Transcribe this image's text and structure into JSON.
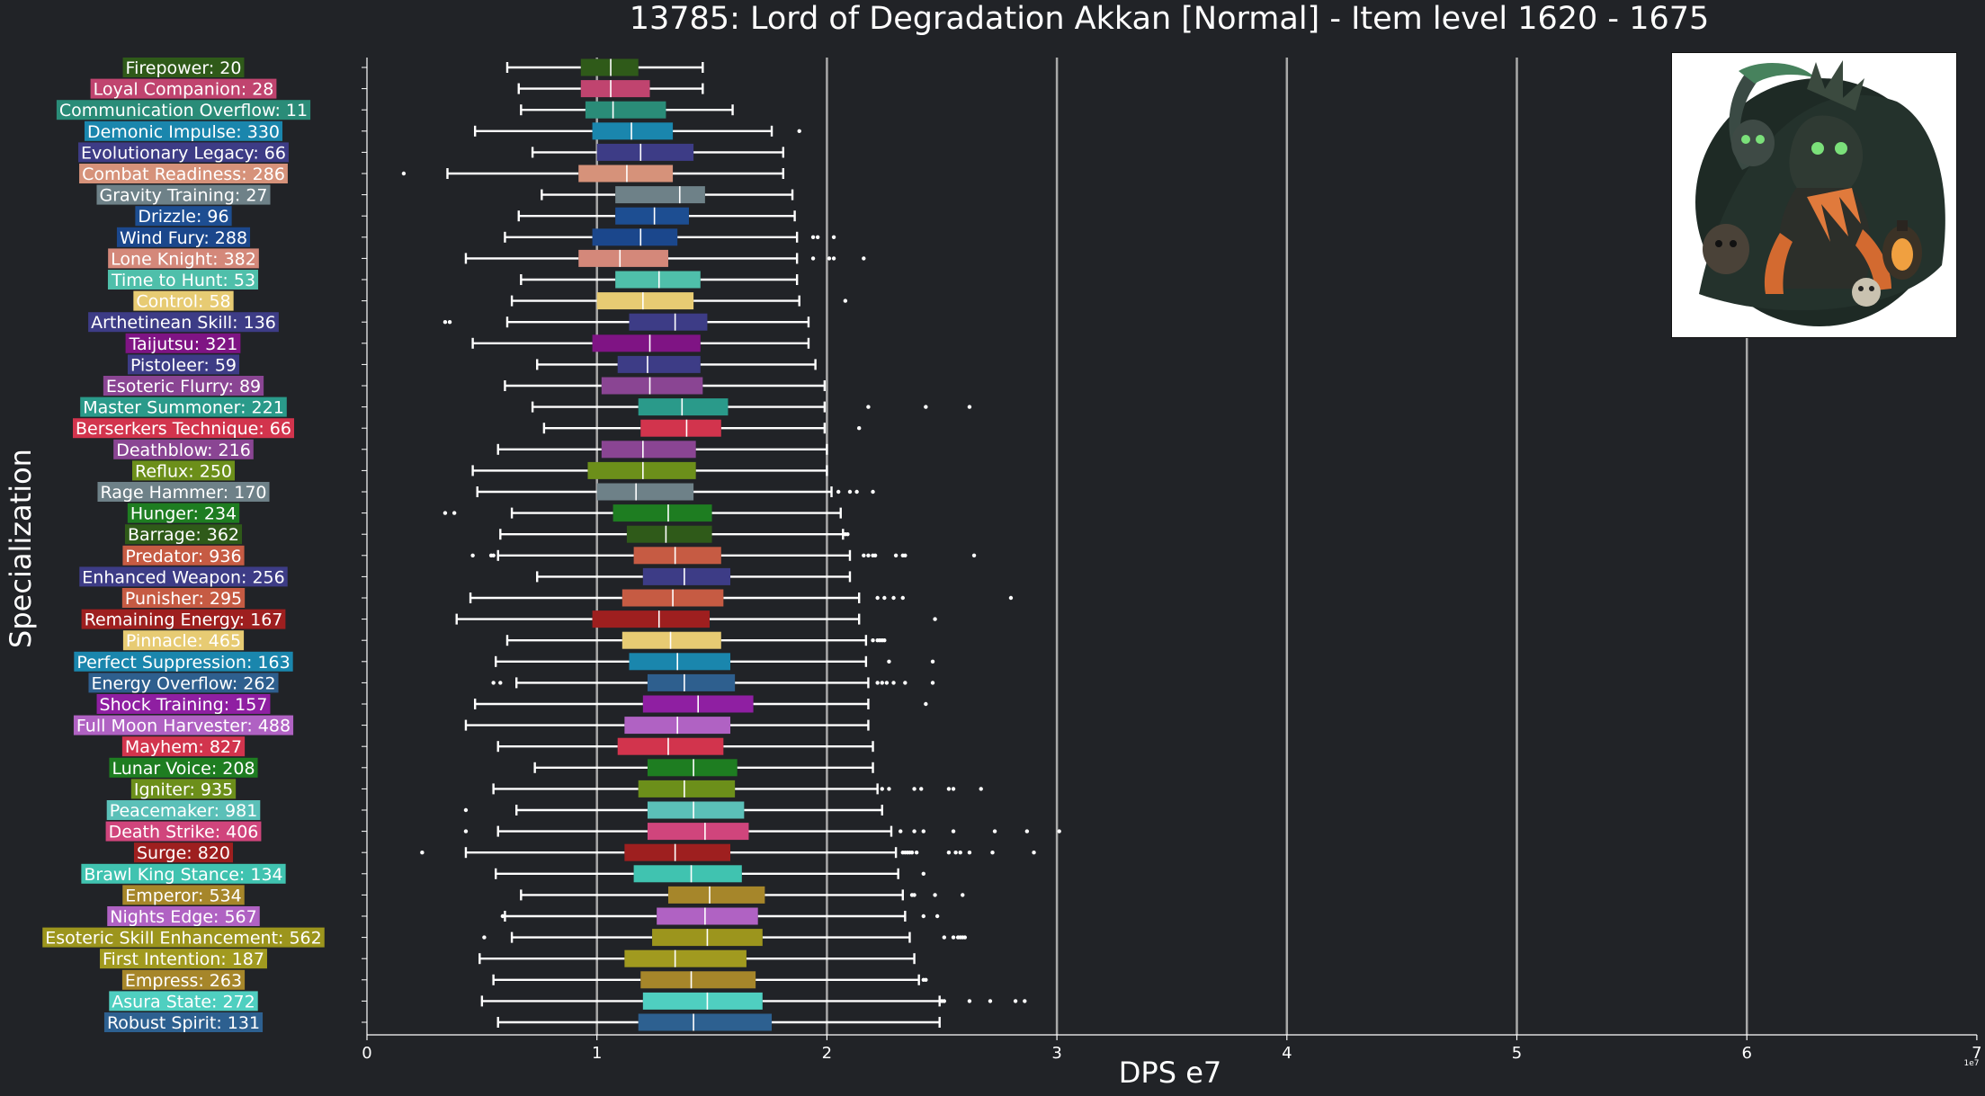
{
  "chart_data": {
    "type": "boxplot",
    "orientation": "horizontal",
    "title": "13785: Lord of Degradation Akkan [Normal] - Item level 1620 - 1675",
    "xlabel": "DPS e7",
    "ylabel": "Specialization",
    "x_offset_text": "1e7",
    "xlim": [
      0,
      7
    ],
    "xticks": [
      0,
      1,
      2,
      3,
      4,
      5,
      6,
      7
    ],
    "vertical_grid": true,
    "boss_image": "lord-of-degradation-akkan-portrait",
    "series": [
      {
        "label": "Firepower: 20",
        "color": "#2f5a19",
        "whisker_low": 0.61,
        "q1": 0.93,
        "median": 1.06,
        "q3": 1.18,
        "whisker_high": 1.46,
        "outliers": []
      },
      {
        "label": "Loyal Companion: 28",
        "color": "#c0446f",
        "whisker_low": 0.66,
        "q1": 0.93,
        "median": 1.06,
        "q3": 1.23,
        "whisker_high": 1.46,
        "outliers": []
      },
      {
        "label": "Communication Overflow: 11",
        "color": "#2a8c78",
        "whisker_low": 0.67,
        "q1": 0.95,
        "median": 1.07,
        "q3": 1.3,
        "whisker_high": 1.59,
        "outliers": []
      },
      {
        "label": "Demonic Impulse: 330",
        "color": "#1a86ad",
        "whisker_low": 0.47,
        "q1": 0.98,
        "median": 1.15,
        "q3": 1.33,
        "whisker_high": 1.76,
        "outliers": [
          1.88
        ]
      },
      {
        "label": "Evolutionary Legacy: 66",
        "color": "#3d3c86",
        "whisker_low": 0.72,
        "q1": 1.0,
        "median": 1.19,
        "q3": 1.42,
        "whisker_high": 1.81,
        "outliers": []
      },
      {
        "label": "Combat Readiness: 286",
        "color": "#d6927a",
        "whisker_low": 0.35,
        "q1": 0.92,
        "median": 1.13,
        "q3": 1.33,
        "whisker_high": 1.81,
        "outliers": [
          0.16
        ]
      },
      {
        "label": "Gravity Training: 27",
        "color": "#6e8188",
        "whisker_low": 0.76,
        "q1": 1.08,
        "median": 1.36,
        "q3": 1.47,
        "whisker_high": 1.85,
        "outliers": []
      },
      {
        "label": "Drizzle: 96",
        "color": "#1d4e92",
        "whisker_low": 0.66,
        "q1": 1.08,
        "median": 1.25,
        "q3": 1.4,
        "whisker_high": 1.86,
        "outliers": []
      },
      {
        "label": "Wind Fury: 288",
        "color": "#1b478c",
        "whisker_low": 0.6,
        "q1": 0.98,
        "median": 1.19,
        "q3": 1.35,
        "whisker_high": 1.87,
        "outliers": [
          1.94,
          1.96,
          2.03
        ]
      },
      {
        "label": "Lone Knight: 382",
        "color": "#d4887a",
        "whisker_low": 0.43,
        "q1": 0.92,
        "median": 1.1,
        "q3": 1.31,
        "whisker_high": 1.87,
        "outliers": [
          1.94,
          2.01,
          2.03,
          2.16
        ]
      },
      {
        "label": "Time to Hunt: 53",
        "color": "#4fbfaa",
        "whisker_low": 0.67,
        "q1": 1.08,
        "median": 1.27,
        "q3": 1.45,
        "whisker_high": 1.87,
        "outliers": []
      },
      {
        "label": "Control: 58",
        "color": "#e7cb73",
        "whisker_low": 0.63,
        "q1": 1.0,
        "median": 1.2,
        "q3": 1.42,
        "whisker_high": 1.88,
        "outliers": [
          2.08
        ]
      },
      {
        "label": "Arthetinean Skill: 136",
        "color": "#3d3c86",
        "whisker_low": 0.61,
        "q1": 1.14,
        "median": 1.34,
        "q3": 1.48,
        "whisker_high": 1.92,
        "outliers": [
          0.34,
          0.36
        ]
      },
      {
        "label": "Taijutsu: 321",
        "color": "#7f1484",
        "whisker_low": 0.46,
        "q1": 0.98,
        "median": 1.23,
        "q3": 1.45,
        "whisker_high": 1.92,
        "outliers": []
      },
      {
        "label": "Pistoleer: 59",
        "color": "#3d3c86",
        "whisker_low": 0.74,
        "q1": 1.09,
        "median": 1.22,
        "q3": 1.45,
        "whisker_high": 1.95,
        "outliers": []
      },
      {
        "label": "Esoteric Flurry: 89",
        "color": "#8a4593",
        "whisker_low": 0.6,
        "q1": 1.02,
        "median": 1.23,
        "q3": 1.46,
        "whisker_high": 1.99,
        "outliers": []
      },
      {
        "label": "Master Summoner: 221",
        "color": "#2a9a8a",
        "whisker_low": 0.72,
        "q1": 1.18,
        "median": 1.37,
        "q3": 1.57,
        "whisker_high": 1.99,
        "outliers": [
          2.18,
          2.43,
          2.62
        ]
      },
      {
        "label": "Berserkers Technique: 66",
        "color": "#d2344d",
        "whisker_low": 0.77,
        "q1": 1.19,
        "median": 1.39,
        "q3": 1.54,
        "whisker_high": 1.99,
        "outliers": [
          2.14
        ]
      },
      {
        "label": "Deathblow: 216",
        "color": "#8a4593",
        "whisker_low": 0.57,
        "q1": 1.02,
        "median": 1.2,
        "q3": 1.43,
        "whisker_high": 2.0,
        "outliers": []
      },
      {
        "label": "Reflux: 250",
        "color": "#6c8f1a",
        "whisker_low": 0.46,
        "q1": 0.96,
        "median": 1.2,
        "q3": 1.43,
        "whisker_high": 2.0,
        "outliers": []
      },
      {
        "label": "Rage Hammer: 170",
        "color": "#6e8188",
        "whisker_low": 0.48,
        "q1": 1.0,
        "median": 1.17,
        "q3": 1.42,
        "whisker_high": 2.02,
        "outliers": [
          2.05,
          2.1,
          2.13,
          2.2
        ]
      },
      {
        "label": "Hunger: 234",
        "color": "#1e7d21",
        "whisker_low": 0.63,
        "q1": 1.07,
        "median": 1.31,
        "q3": 1.5,
        "whisker_high": 2.06,
        "outliers": [
          0.34,
          0.38
        ]
      },
      {
        "label": "Barrage: 362",
        "color": "#2f5a19",
        "whisker_low": 0.58,
        "q1": 1.13,
        "median": 1.3,
        "q3": 1.5,
        "whisker_high": 2.07,
        "outliers": [
          2.08,
          2.09
        ]
      },
      {
        "label": "Predator: 936",
        "color": "#c65b43",
        "whisker_low": 0.57,
        "q1": 1.16,
        "median": 1.34,
        "q3": 1.54,
        "whisker_high": 2.1,
        "outliers": [
          0.46,
          0.54,
          0.55,
          2.16,
          2.18,
          2.2,
          2.21,
          2.3,
          2.33,
          2.34,
          2.64
        ]
      },
      {
        "label": "Enhanced Weapon: 256",
        "color": "#3d3c86",
        "whisker_low": 0.74,
        "q1": 1.2,
        "median": 1.38,
        "q3": 1.58,
        "whisker_high": 2.1,
        "outliers": []
      },
      {
        "label": "Punisher: 295",
        "color": "#c65b43",
        "whisker_low": 0.45,
        "q1": 1.11,
        "median": 1.33,
        "q3": 1.55,
        "whisker_high": 2.14,
        "outliers": [
          2.22,
          2.25,
          2.29,
          2.33,
          2.8
        ]
      },
      {
        "label": "Remaining Energy: 167",
        "color": "#9e1f1f",
        "whisker_low": 0.39,
        "q1": 0.98,
        "median": 1.27,
        "q3": 1.49,
        "whisker_high": 2.14,
        "outliers": [
          2.47
        ]
      },
      {
        "label": "Pinnacle: 465",
        "color": "#e7cb73",
        "whisker_low": 0.61,
        "q1": 1.11,
        "median": 1.32,
        "q3": 1.54,
        "whisker_high": 2.17,
        "outliers": [
          2.2,
          2.22,
          2.23,
          2.24,
          2.25
        ]
      },
      {
        "label": "Perfect Suppression: 163",
        "color": "#1a86ad",
        "whisker_low": 0.56,
        "q1": 1.14,
        "median": 1.35,
        "q3": 1.58,
        "whisker_high": 2.17,
        "outliers": [
          2.27,
          2.46
        ]
      },
      {
        "label": "Energy Overflow: 262",
        "color": "#2e5f8e",
        "whisker_low": 0.65,
        "q1": 1.22,
        "median": 1.38,
        "q3": 1.6,
        "whisker_high": 2.18,
        "outliers": [
          0.55,
          0.58,
          2.22,
          2.24,
          2.26,
          2.29,
          2.34,
          2.46
        ]
      },
      {
        "label": "Shock Training: 157",
        "color": "#8f1fa2",
        "whisker_low": 0.47,
        "q1": 1.2,
        "median": 1.44,
        "q3": 1.68,
        "whisker_high": 2.18,
        "outliers": [
          2.43
        ]
      },
      {
        "label": "Full Moon Harvester: 488",
        "color": "#b062c3",
        "whisker_low": 0.43,
        "q1": 1.12,
        "median": 1.35,
        "q3": 1.58,
        "whisker_high": 2.18,
        "outliers": []
      },
      {
        "label": "Mayhem: 827",
        "color": "#d2344d",
        "whisker_low": 0.57,
        "q1": 1.09,
        "median": 1.31,
        "q3": 1.55,
        "whisker_high": 2.2,
        "outliers": []
      },
      {
        "label": "Lunar Voice: 208",
        "color": "#1e7d21",
        "whisker_low": 0.73,
        "q1": 1.22,
        "median": 1.42,
        "q3": 1.61,
        "whisker_high": 2.2,
        "outliers": []
      },
      {
        "label": "Igniter: 935",
        "color": "#6c8f1a",
        "whisker_low": 0.55,
        "q1": 1.18,
        "median": 1.38,
        "q3": 1.6,
        "whisker_high": 2.22,
        "outliers": [
          2.24,
          2.27,
          2.38,
          2.41,
          2.53,
          2.55,
          2.67
        ]
      },
      {
        "label": "Peacemaker: 981",
        "color": "#5bc0b8",
        "whisker_low": 0.65,
        "q1": 1.22,
        "median": 1.42,
        "q3": 1.64,
        "whisker_high": 2.24,
        "outliers": [
          0.43
        ]
      },
      {
        "label": "Death Strike: 406",
        "color": "#d0457c",
        "whisker_low": 0.57,
        "q1": 1.22,
        "median": 1.47,
        "q3": 1.66,
        "whisker_high": 2.28,
        "outliers": [
          0.43,
          2.32,
          2.38,
          2.42,
          2.55,
          2.73,
          2.87,
          3.01
        ]
      },
      {
        "label": "Surge: 820",
        "color": "#9e1f1f",
        "whisker_low": 0.43,
        "q1": 1.12,
        "median": 1.34,
        "q3": 1.58,
        "whisker_high": 2.3,
        "outliers": [
          0.24,
          2.33,
          2.34,
          2.35,
          2.36,
          2.37,
          2.39,
          2.53,
          2.56,
          2.58,
          2.62,
          2.72,
          2.9
        ]
      },
      {
        "label": "Brawl King Stance: 134",
        "color": "#40c3b0",
        "whisker_low": 0.56,
        "q1": 1.16,
        "median": 1.41,
        "q3": 1.63,
        "whisker_high": 2.31,
        "outliers": [
          2.42
        ]
      },
      {
        "label": "Emperor: 534",
        "color": "#a6862a",
        "whisker_low": 0.67,
        "q1": 1.31,
        "median": 1.49,
        "q3": 1.73,
        "whisker_high": 2.33,
        "outliers": [
          2.37,
          2.38,
          2.47,
          2.59
        ]
      },
      {
        "label": "Nights Edge: 567",
        "color": "#b062c3",
        "whisker_low": 0.6,
        "q1": 1.26,
        "median": 1.47,
        "q3": 1.7,
        "whisker_high": 2.34,
        "outliers": [
          0.59,
          2.42,
          2.48
        ]
      },
      {
        "label": "Esoteric Skill Enhancement: 562",
        "color": "#9c951d",
        "whisker_low": 0.63,
        "q1": 1.24,
        "median": 1.48,
        "q3": 1.72,
        "whisker_high": 2.36,
        "outliers": [
          0.51,
          2.51,
          2.55,
          2.57,
          2.58,
          2.59,
          2.6
        ]
      },
      {
        "label": "First Intention: 187",
        "color": "#a19a1f",
        "whisker_low": 0.49,
        "q1": 1.12,
        "median": 1.34,
        "q3": 1.65,
        "whisker_high": 2.38,
        "outliers": []
      },
      {
        "label": "Empress: 263",
        "color": "#a6862a",
        "whisker_low": 0.55,
        "q1": 1.19,
        "median": 1.41,
        "q3": 1.69,
        "whisker_high": 2.4,
        "outliers": [
          2.42,
          2.43
        ]
      },
      {
        "label": "Asura State: 272",
        "color": "#4fcfc0",
        "whisker_low": 0.5,
        "q1": 1.2,
        "median": 1.48,
        "q3": 1.72,
        "whisker_high": 2.49,
        "outliers": [
          2.5,
          2.51,
          2.62,
          2.71,
          2.82,
          2.86
        ]
      },
      {
        "label": "Robust Spirit: 131",
        "color": "#2d6090",
        "whisker_low": 0.57,
        "q1": 1.18,
        "median": 1.42,
        "q3": 1.76,
        "whisker_high": 2.49,
        "outliers": []
      }
    ]
  }
}
